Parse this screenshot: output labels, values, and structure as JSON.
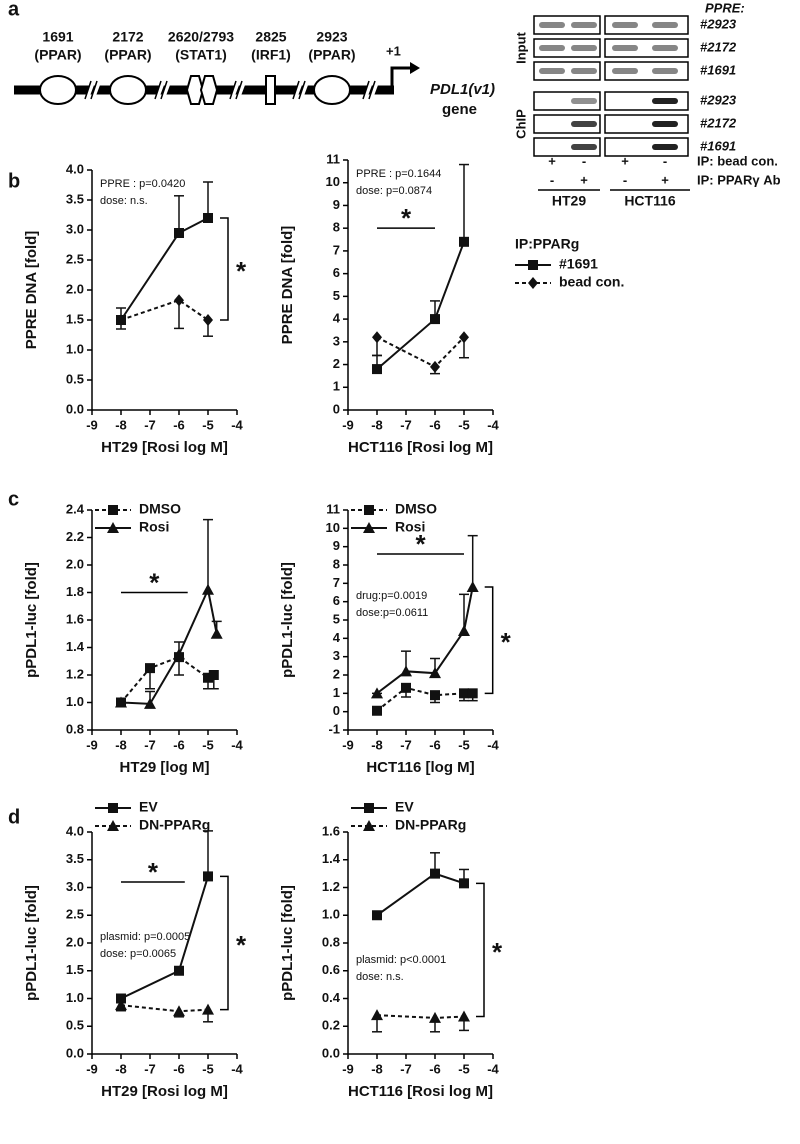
{
  "panel_labels": [
    "a",
    "b",
    "c",
    "d"
  ],
  "panel_a": {
    "sites": [
      [
        "1691",
        "(PPAR)"
      ],
      [
        "2172",
        "(PPAR)"
      ],
      [
        "2620/2793",
        "(STAT1)"
      ],
      [
        "2825",
        "(IRF1)"
      ],
      [
        "2923",
        "(PPAR)"
      ]
    ],
    "tss": "+1",
    "gene": [
      "PDL1(v1)",
      "gene"
    ],
    "blot": {
      "header": "PPRE:",
      "input_label": "Input",
      "chip_label": "ChIP",
      "input_rows": [
        "#2923",
        "#2172",
        "#1691"
      ],
      "chip_rows": [
        "#2923",
        "#2172",
        "#1691"
      ],
      "ip_rows": [
        {
          "signs": [
            "+",
            "-",
            "+",
            "-"
          ],
          "label": "IP: bead con."
        },
        {
          "signs": [
            "-",
            "+",
            "-",
            "+"
          ],
          "label": "IP: PPARγ Ab"
        }
      ],
      "cells": [
        "HT29",
        "HCT116"
      ]
    }
  },
  "chart_data": [
    {
      "type": "line",
      "xlabel": "HT29 [Rosi log M]",
      "ylabel": "PPRE DNA [fold]",
      "xlim": [
        -9,
        -4
      ],
      "xticks": [
        -9,
        -8,
        -7,
        -6,
        -5,
        -4
      ],
      "ylim": [
        0,
        4
      ],
      "yticks": [
        {
          "value": 0,
          "label": "0.0"
        },
        0.5,
        {
          "value": 1,
          "label": "1.0"
        },
        1.5,
        {
          "value": 2,
          "label": "2.0"
        },
        2.5,
        {
          "value": 3,
          "label": "3.0"
        },
        3.5,
        {
          "value": 4,
          "label": "4.0"
        }
      ],
      "annotations": [
        "PPRE : p=0.0420",
        "dose: n.s."
      ],
      "bracket": {
        "label": "*"
      },
      "series": [
        {
          "color": "#111111",
          "line": "solid",
          "marker": "square",
          "error_direction": "up",
          "x": [
            -8,
            -6,
            -5
          ],
          "values": [
            1.5,
            2.95,
            3.2
          ],
          "errors": [
            0.2,
            0.62,
            0.6
          ]
        },
        {
          "color": "#111111",
          "line": "dashed",
          "marker": "diamond",
          "error_direction": "down",
          "x": [
            -8,
            -6,
            -5
          ],
          "values": [
            1.5,
            1.83,
            1.5
          ],
          "errors": [
            0.15,
            0.47,
            0.27
          ]
        }
      ]
    },
    {
      "type": "line",
      "xlabel": "HCT116 [Rosi log M]",
      "ylabel": "PPRE DNA [fold]",
      "xlim": [
        -9,
        -4
      ],
      "xticks": [
        -9,
        -8,
        -7,
        -6,
        -5,
        -4
      ],
      "ylim": [
        0,
        11
      ],
      "yticks": [
        0,
        1,
        2,
        3,
        4,
        5,
        6,
        7,
        8,
        9,
        10,
        11
      ],
      "annotations": [
        "PPRE : p=0.1644",
        "dose: p=0.0874"
      ],
      "significance": {
        "label": "*",
        "x": [
          -8,
          -6
        ],
        "y": 8
      },
      "legend": {
        "title": "IP:PPARg",
        "position": "right"
      },
      "series": [
        {
          "name": "#1691",
          "color": "#111111",
          "line": "solid",
          "marker": "square",
          "error_direction": "up",
          "x": [
            -8,
            -6,
            -5
          ],
          "values": [
            1.8,
            4.0,
            7.4
          ],
          "errors": [
            0.6,
            0.8,
            3.4
          ]
        },
        {
          "name": "bead con.",
          "color": "#111111",
          "line": "dashed",
          "marker": "diamond",
          "error_direction": "down",
          "x": [
            -8,
            -6,
            -5
          ],
          "values": [
            3.2,
            1.9,
            3.2
          ],
          "errors": [
            0.8,
            0.3,
            0.9
          ]
        }
      ]
    },
    {
      "type": "line",
      "xlabel": "HT29 [log M]",
      "ylabel": "pPDL1-luc [fold]",
      "xlim": [
        -9,
        -4
      ],
      "xticks": [
        -9,
        -8,
        -7,
        -6,
        -5,
        -4
      ],
      "ylim": [
        0.8,
        2.4
      ],
      "yticks": [
        0.8,
        {
          "value": 1,
          "label": "1.0"
        },
        1.2,
        1.4,
        1.6,
        1.8,
        {
          "value": 2,
          "label": "2.0"
        },
        2.2,
        2.4
      ],
      "significance": {
        "label": "*",
        "x": [
          -8,
          -5.7
        ],
        "y": 1.8
      },
      "legend": {
        "position": "upper-left"
      },
      "series": [
        {
          "name": "DMSO",
          "color": "#111111",
          "line": "dashed",
          "marker": "square",
          "error_direction": "down",
          "x": [
            -8,
            -7,
            -6,
            -5,
            -4.8
          ],
          "values": [
            1.0,
            1.25,
            1.33,
            1.18,
            1.2
          ],
          "errors": [
            0,
            0.15,
            0.13,
            0.08,
            0.1
          ]
        },
        {
          "name": "Rosi",
          "color": "#111111",
          "line": "solid",
          "marker": "triangle",
          "error_direction": "up",
          "x": [
            -8,
            -7,
            -6,
            -5,
            -4.7
          ],
          "values": [
            1.0,
            0.99,
            1.35,
            1.82,
            1.5
          ],
          "errors": [
            0,
            0.09,
            0.09,
            0.51,
            0.09
          ]
        }
      ]
    },
    {
      "type": "line",
      "xlabel": "HCT116 [log M]",
      "ylabel": "pPDL1-luc [fold]",
      "xlim": [
        -9,
        -4
      ],
      "xticks": [
        -9,
        -8,
        -7,
        -6,
        -5,
        -4
      ],
      "ylim": [
        -1,
        11
      ],
      "yticks": [
        -1,
        0,
        1,
        2,
        3,
        4,
        5,
        6,
        7,
        8,
        9,
        10,
        11
      ],
      "annotations": [
        "drug:p=0.0019",
        "dose:p=0.0611"
      ],
      "significance": {
        "label": "*",
        "x": [
          -8,
          -5
        ],
        "y": 8.6
      },
      "bracket": {
        "label": "*"
      },
      "legend": {
        "position": "upper-left"
      },
      "series": [
        {
          "name": "DMSO",
          "color": "#111111",
          "line": "dashed",
          "marker": "square",
          "error_direction": "down",
          "x": [
            -8,
            -7,
            -6,
            -5,
            -4.7
          ],
          "values": [
            0.05,
            1.3,
            0.9,
            1.0,
            1.0
          ],
          "errors": [
            0,
            0.5,
            0.4,
            0.4,
            0.4
          ]
        },
        {
          "name": "Rosi",
          "color": "#111111",
          "line": "solid",
          "marker": "triangle",
          "error_direction": "up",
          "x": [
            -8,
            -7,
            -6,
            -5,
            -4.7
          ],
          "values": [
            1.0,
            2.2,
            2.1,
            4.4,
            6.8
          ],
          "errors": [
            0,
            1.1,
            0.8,
            2.0,
            2.8
          ]
        }
      ]
    },
    {
      "type": "line",
      "xlabel": "HT29 [Rosi log M]",
      "ylabel": "pPDL1-luc [fold]",
      "xlim": [
        -9,
        -4
      ],
      "xticks": [
        -9,
        -8,
        -7,
        -6,
        -5,
        -4
      ],
      "ylim": [
        0,
        4
      ],
      "yticks": [
        {
          "value": 0,
          "label": "0.0"
        },
        0.5,
        {
          "value": 1,
          "label": "1.0"
        },
        1.5,
        {
          "value": 2,
          "label": "2.0"
        },
        2.5,
        {
          "value": 3,
          "label": "3.0"
        },
        3.5,
        {
          "value": 4,
          "label": "4.0"
        }
      ],
      "annotations": [
        "plasmid: p=0.0005",
        "dose: p=0.0065"
      ],
      "significance": {
        "label": "*",
        "x": [
          -8,
          -5.8
        ],
        "y": 3.1
      },
      "bracket": {
        "label": "*"
      },
      "legend": {
        "position": "above"
      },
      "series": [
        {
          "name": "EV",
          "color": "#111111",
          "line": "solid",
          "marker": "square",
          "error_direction": "up",
          "x": [
            -8,
            -6,
            -5
          ],
          "values": [
            1.0,
            1.5,
            3.2
          ],
          "errors": [
            0.05,
            0.05,
            0.82
          ]
        },
        {
          "name": "DN-PPARg",
          "color": "#111111",
          "line": "dashed",
          "marker": "triangle",
          "error_direction": "down",
          "x": [
            -8,
            -6,
            -5
          ],
          "values": [
            0.88,
            0.77,
            0.8
          ],
          "errors": [
            0.1,
            0.1,
            0.22
          ]
        }
      ]
    },
    {
      "type": "line",
      "xlabel": "HCT116 [Rosi log M]",
      "ylabel": "pPDL1-luc [fold]",
      "xlim": [
        -9,
        -4
      ],
      "xticks": [
        -9,
        -8,
        -7,
        -6,
        -5,
        -4
      ],
      "ylim": [
        0,
        1.6
      ],
      "yticks": [
        {
          "value": 0,
          "label": "0.0"
        },
        0.2,
        0.4,
        0.6,
        0.8,
        {
          "value": 1,
          "label": "1.0"
        },
        1.2,
        1.4,
        1.6
      ],
      "annotations": [
        "plasmid: p<0.0001",
        "dose: n.s."
      ],
      "bracket": {
        "label": "*"
      },
      "legend": {
        "position": "above"
      },
      "series": [
        {
          "name": "EV",
          "color": "#111111",
          "line": "solid",
          "marker": "square",
          "error_direction": "up",
          "x": [
            -8,
            -6,
            -5
          ],
          "values": [
            1.0,
            1.3,
            1.23
          ],
          "errors": [
            0,
            0.15,
            0.1
          ]
        },
        {
          "name": "DN-PPARg",
          "color": "#111111",
          "line": "dashed",
          "marker": "triangle",
          "error_direction": "down",
          "x": [
            -8,
            -6,
            -5
          ],
          "values": [
            0.28,
            0.26,
            0.27
          ],
          "errors": [
            0.12,
            0.1,
            0.1
          ]
        }
      ]
    }
  ]
}
